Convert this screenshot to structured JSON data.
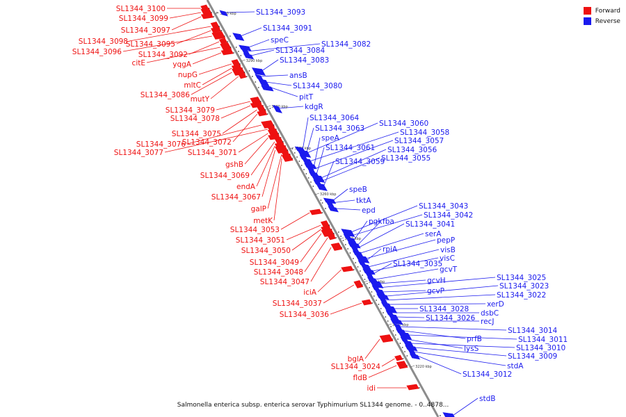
{
  "legend": {
    "forward_label": "Forward",
    "reverse_label": "Reverse",
    "forward_color": "#ee1111",
    "reverse_color": "#1a1aee"
  },
  "caption": "Salmonella enterica subsp. enterica serovar Typhimurium SL1344 genome. - 0..4878...",
  "ticks": [
    "3300 kbp",
    "3290 kbp",
    "3280 kbp",
    "3270 kbp",
    "3260 kbp",
    "3250 kbp",
    "3240 kbp",
    "3230 kbp",
    "3220 kbp"
  ],
  "forward_genes": [
    "SL1344_3100",
    "SL1344_3099",
    "SL1344_3097",
    "SL1344_3098",
    "SL1344_3095",
    "SL1344_3096",
    "SL1344_3092",
    "citE",
    "yqgA",
    "nupG",
    "mltC",
    "SL1344_3086",
    "mutY",
    "SL1344_3079",
    "SL1344_3078",
    "SL1344_3075",
    "SL1344_3072",
    "SL1344_3076",
    "SL1344_3077",
    "SL1344_3071",
    "gshB",
    "SL1344_3069",
    "endA",
    "SL1344_3067",
    "galP",
    "metK",
    "SL1344_3053",
    "SL1344_3051",
    "SL1344_3050",
    "SL1344_3049",
    "SL1344_3048",
    "SL1344_3047",
    "iciA",
    "SL1344_3037",
    "SL1344_3036",
    "bglA",
    "SL1344_3024",
    "fldB",
    "idi"
  ],
  "reverse_genes": [
    "SL1344_3093",
    "SL1344_3091",
    "speC",
    "SL1344_3082",
    "SL1344_3084",
    "SL1344_3083",
    "ansB",
    "SL1344_3080",
    "pitT",
    "kdgR",
    "SL1344_3064",
    "SL1344_3060",
    "SL1344_3063",
    "SL1344_3058",
    "speA",
    "SL1344_3057",
    "SL1344_3061",
    "SL1344_3056",
    "SL1344_3055",
    "SL1344_3059",
    "speB",
    "tktA",
    "epd",
    "SL1344_3043",
    "SL1344_3042",
    "pgk",
    "fba",
    "SL1344_3041",
    "serA",
    "pepP",
    "rpiA",
    "visB",
    "visC",
    "SL1344_3035",
    "gcvT",
    "gcvH",
    "SL1344_3025",
    "gcvP",
    "SL1344_3023",
    "SL1344_3022",
    "xerD",
    "SL1344_3028",
    "dsbC",
    "SL1344_3026",
    "recJ",
    "SL1344_3014",
    "prfB",
    "SL1344_3011",
    "lysS",
    "SL1344_3010",
    "SL1344_3009",
    "stdA",
    "SL1344_3012",
    "stdB"
  ]
}
